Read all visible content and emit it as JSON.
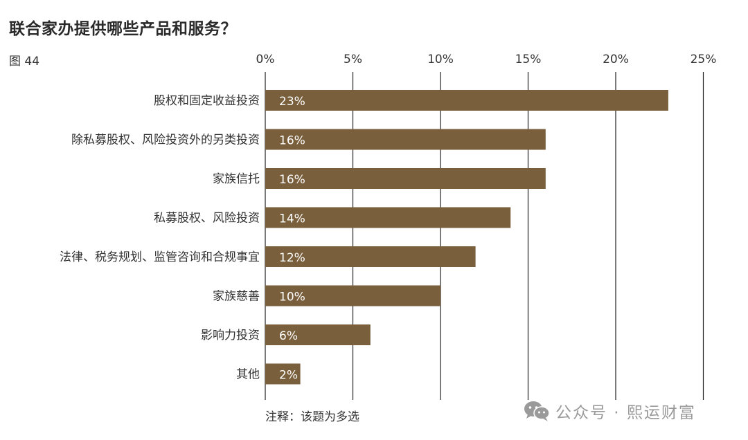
{
  "title": "联合家办提供哪些产品和服务？",
  "figure_label": "图 44",
  "note": "注释：该题为多选",
  "watermark": {
    "icon": "wechat-icon",
    "text": "公众号 · 熙运财富"
  },
  "colors": {
    "bar": "#7a5f3c",
    "bar_label_inside": "#ffffff",
    "bar_label_outside": "#333333",
    "grid": "#222222",
    "text": "#333333"
  },
  "chart_data": {
    "type": "bar",
    "orientation": "horizontal",
    "categories": [
      "股权和固定收益投资",
      "除私募股权、风险投资外的另类投资",
      "家族信托",
      "私募股权、风险投资",
      "法律、税务规划、监管咨询和合规事宜",
      "家族慈善",
      "影响力投资",
      "其他"
    ],
    "values": [
      23,
      16,
      16,
      14,
      12,
      10,
      6,
      2
    ],
    "value_labels": [
      "23%",
      "16%",
      "16%",
      "14%",
      "12%",
      "10%",
      "6%",
      "2%"
    ],
    "xticks": [
      0,
      5,
      10,
      15,
      20,
      25
    ],
    "xtick_labels": [
      "0%",
      "5%",
      "10%",
      "15%",
      "20%",
      "25%"
    ],
    "xlim": [
      0,
      25
    ],
    "xaxis_position": "top",
    "grid": true,
    "legend": "none"
  }
}
